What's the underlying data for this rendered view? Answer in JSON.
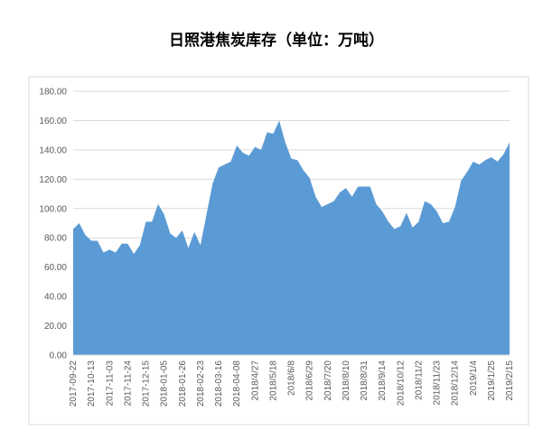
{
  "chart_data": {
    "type": "area",
    "title": "日照港焦炭库存（单位：万吨）",
    "categories": [
      "2017-09-22",
      null,
      null,
      "2017-10-13",
      null,
      null,
      "2017-11-03",
      null,
      null,
      "2017-11-24",
      null,
      null,
      "2017-12-15",
      null,
      null,
      "2018-01-05",
      null,
      null,
      "2018-01-26",
      null,
      null,
      "2018-02-23",
      null,
      null,
      "2018-03-16",
      null,
      null,
      "2018-04-08",
      null,
      null,
      "2018/4/27",
      null,
      null,
      "2018/5/18",
      null,
      null,
      "2018/6/8",
      null,
      null,
      "2018/6/29",
      null,
      null,
      "2018/7/20",
      null,
      null,
      "2018/8/10",
      null,
      null,
      "2018/8/31",
      null,
      null,
      "2018/9/14",
      null,
      null,
      "2018/10/12",
      null,
      null,
      "2018/11/2",
      null,
      null,
      "2018/11/23",
      null,
      null,
      "2018/12/14",
      null,
      null,
      "2019/1/4",
      null,
      null,
      "2019/1/25",
      null,
      null,
      "2019/2/15"
    ],
    "values": [
      86,
      90,
      82,
      78,
      78,
      70,
      72,
      70,
      76,
      76,
      69,
      75,
      91,
      91,
      103,
      96,
      83,
      80,
      85,
      73,
      84,
      75,
      96,
      117,
      128,
      130,
      132,
      143,
      138,
      136,
      142,
      140,
      152,
      151,
      160,
      145,
      134,
      133,
      126,
      121,
      108,
      101,
      103,
      105,
      111,
      114,
      108,
      115,
      115,
      115,
      103,
      98,
      91,
      86,
      88,
      97,
      87,
      91,
      105,
      103,
      98,
      90,
      91,
      101,
      119,
      125,
      132,
      130,
      133,
      135,
      132,
      137,
      145
    ],
    "color": "#5b9bd5",
    "ylim": [
      0,
      180
    ],
    "yticks": [
      {
        "value": 0,
        "label": "0.00"
      },
      {
        "value": 20,
        "label": "20.00"
      },
      {
        "value": 40,
        "label": "40.00"
      },
      {
        "value": 60,
        "label": "60.00"
      },
      {
        "value": 80,
        "label": "80.00"
      },
      {
        "value": 100,
        "label": "100.00"
      },
      {
        "value": 120,
        "label": "120.00"
      },
      {
        "value": 140,
        "label": "140.00"
      },
      {
        "value": 160,
        "label": "160.00"
      },
      {
        "value": 180,
        "label": "180.00"
      }
    ],
    "grid": true
  }
}
